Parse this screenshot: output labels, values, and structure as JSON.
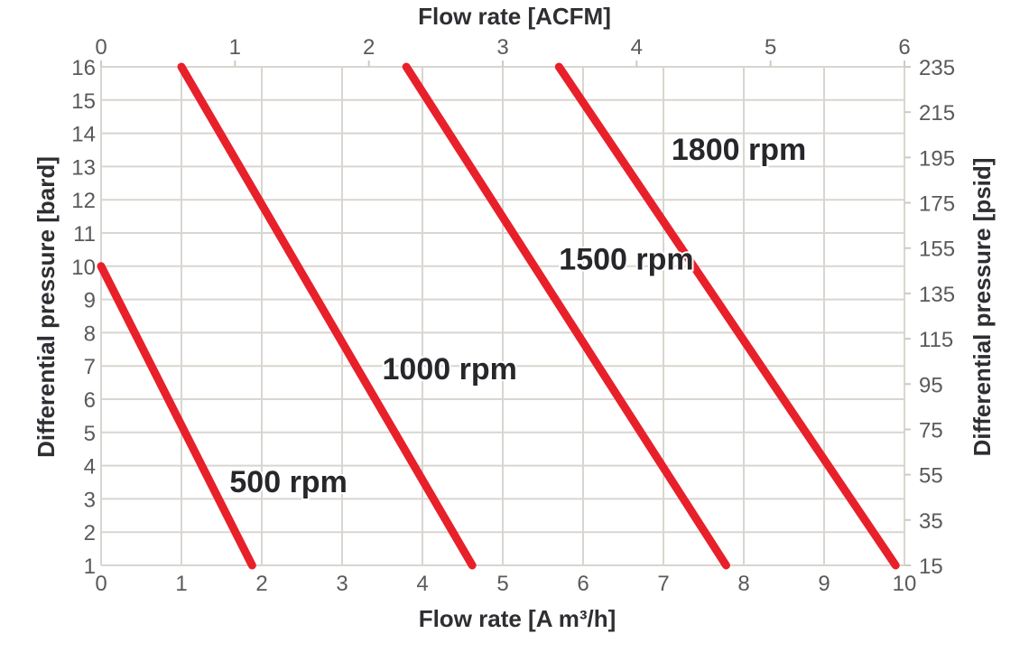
{
  "chart_data": {
    "type": "line",
    "title": "",
    "xlabel": "Flow rate [A m³/h]",
    "x2label": "Flow rate [ACFM]",
    "ylabel": "Differential pressure [bard]",
    "y2label": "Differential pressure [psid]",
    "xlim": [
      0,
      10
    ],
    "x2lim": [
      0,
      6
    ],
    "ylim": [
      1,
      16
    ],
    "y2lim": [
      15,
      235
    ],
    "x_ticks": [
      0,
      1,
      2,
      3,
      4,
      5,
      6,
      7,
      8,
      9,
      10
    ],
    "x2_ticks": [
      0,
      1,
      2,
      3,
      4,
      5,
      6
    ],
    "y_ticks": [
      1,
      2,
      3,
      4,
      5,
      6,
      7,
      8,
      9,
      10,
      11,
      12,
      13,
      14,
      15,
      16
    ],
    "y2_ticks": [
      235,
      215,
      195,
      175,
      155,
      135,
      115,
      95,
      75,
      55,
      35,
      15
    ],
    "grid": true,
    "legend_position": "inline labels",
    "series": [
      {
        "name": "500 rpm",
        "color": "#e8202a",
        "x": [
          0.0,
          1.88
        ],
        "y": [
          10,
          1
        ],
        "label_pos": [
          1.6,
          3.2
        ]
      },
      {
        "name": "1000 rpm",
        "color": "#e8202a",
        "x": [
          1.0,
          4.62
        ],
        "y": [
          16,
          1
        ],
        "label_pos": [
          3.5,
          6.6
        ]
      },
      {
        "name": "1500 rpm",
        "color": "#e8202a",
        "x": [
          3.8,
          7.78
        ],
        "y": [
          16,
          1
        ],
        "label_pos": [
          5.7,
          9.9
        ]
      },
      {
        "name": "1800 rpm",
        "color": "#e8202a",
        "x": [
          5.7,
          9.89
        ],
        "y": [
          16,
          1
        ],
        "label_pos": [
          7.1,
          13.2
        ]
      }
    ]
  }
}
